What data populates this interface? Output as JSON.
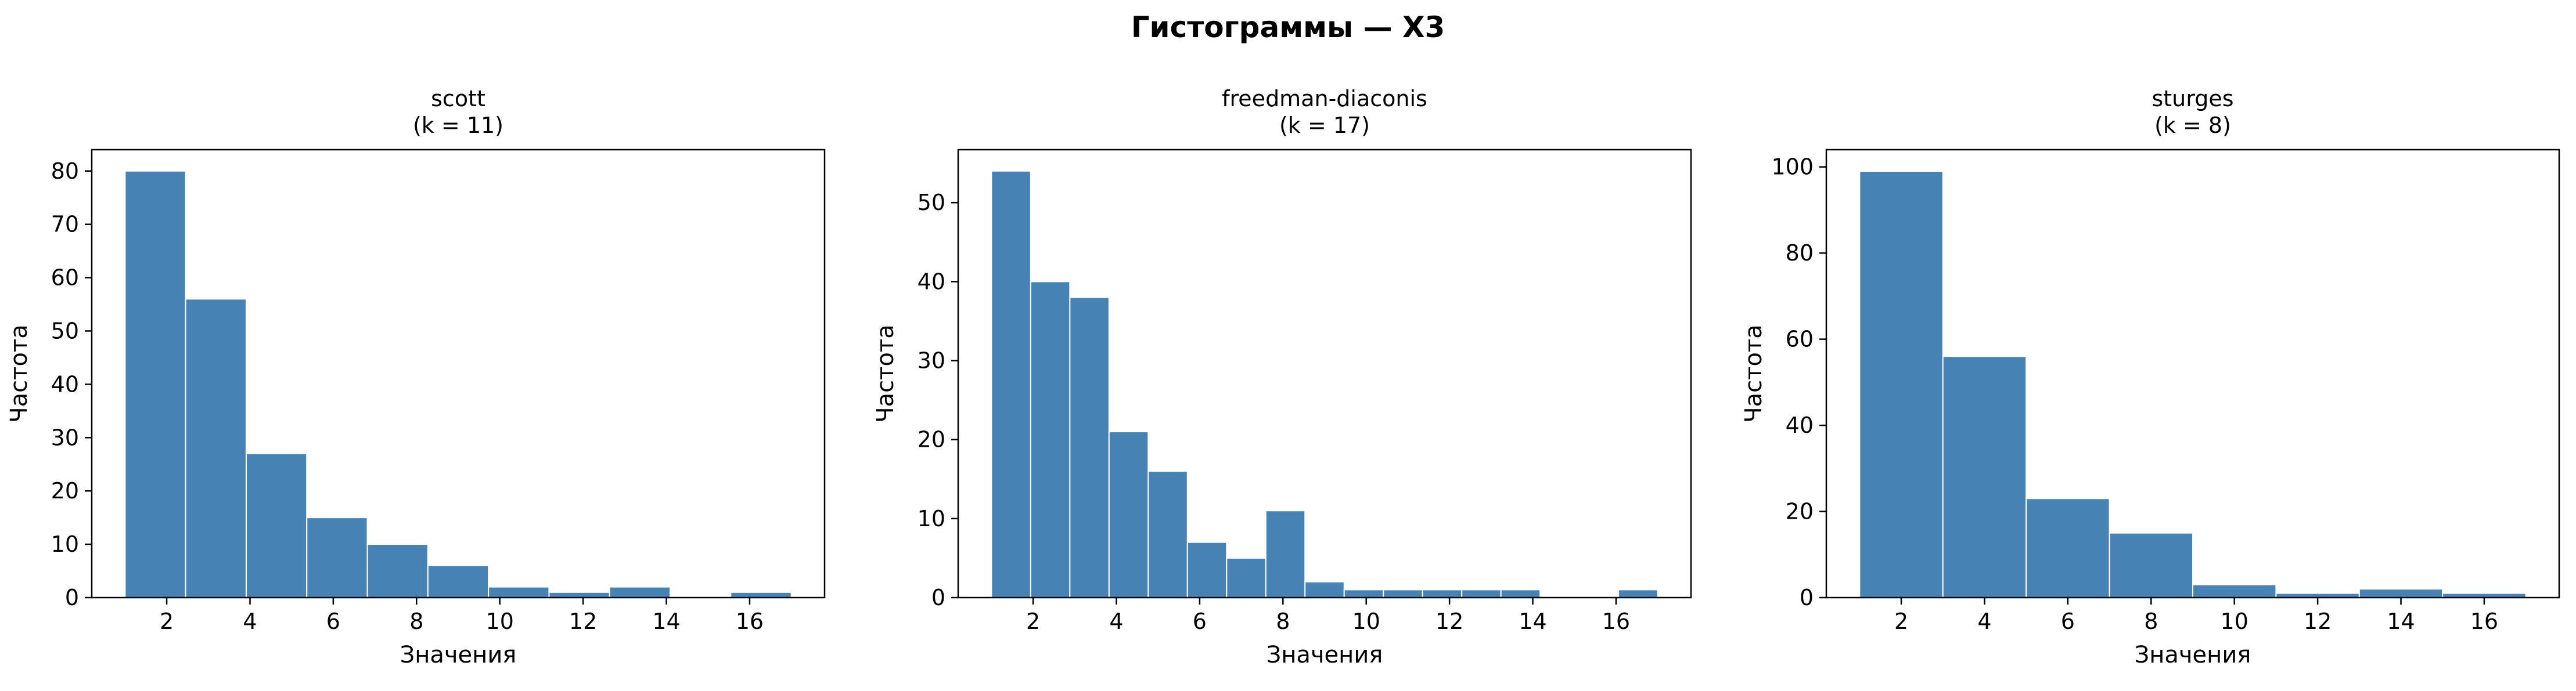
{
  "figure": {
    "title": "Гистограммы — X3"
  },
  "chart_data": [
    {
      "type": "bar",
      "title": "scott",
      "subtitle": "(k = 11)",
      "xlabel": "Значения",
      "ylabel": "Частота",
      "bin_edges": [
        1.0,
        2.4545,
        3.9091,
        5.3636,
        6.8182,
        8.2727,
        9.7273,
        11.1818,
        12.6364,
        14.0909,
        15.5455,
        17.0
      ],
      "values": [
        80,
        56,
        27,
        15,
        10,
        6,
        2,
        1,
        2,
        0,
        1
      ],
      "xlim": [
        0.2,
        17.8
      ],
      "ylim": [
        0,
        84
      ],
      "xticks": [
        2,
        4,
        6,
        8,
        10,
        12,
        14,
        16
      ],
      "yticks": [
        0,
        10,
        20,
        30,
        40,
        50,
        60,
        70,
        80
      ],
      "bar_color": "#4682b4",
      "edge_color": "#ffffff"
    },
    {
      "type": "bar",
      "title": "freedman-diaconis",
      "subtitle": "(k = 17)",
      "xlabel": "Значения",
      "ylabel": "Частота",
      "bin_edges": [
        1.0,
        1.9412,
        2.8824,
        3.8235,
        4.7647,
        5.7059,
        6.6471,
        7.5882,
        8.5294,
        9.4706,
        10.4118,
        11.3529,
        12.2941,
        13.2353,
        14.1765,
        15.1176,
        16.0588,
        17.0
      ],
      "values": [
        54,
        40,
        38,
        21,
        16,
        7,
        5,
        11,
        2,
        1,
        1,
        1,
        1,
        1,
        0,
        0,
        1
      ],
      "xlim": [
        0.2,
        17.8
      ],
      "ylim": [
        0,
        56.7
      ],
      "xticks": [
        2,
        4,
        6,
        8,
        10,
        12,
        14,
        16
      ],
      "yticks": [
        0,
        10,
        20,
        30,
        40,
        50
      ],
      "bar_color": "#4682b4",
      "edge_color": "#ffffff"
    },
    {
      "type": "bar",
      "title": "sturges",
      "subtitle": "(k = 8)",
      "xlabel": "Значения",
      "ylabel": "Частота",
      "bin_edges": [
        1.0,
        3.0,
        5.0,
        7.0,
        9.0,
        11.0,
        13.0,
        15.0,
        17.0
      ],
      "values": [
        99,
        56,
        23,
        15,
        3,
        1,
        2,
        1
      ],
      "xlim": [
        0.2,
        17.8
      ],
      "ylim": [
        0,
        104
      ],
      "xticks": [
        2,
        4,
        6,
        8,
        10,
        12,
        14,
        16
      ],
      "yticks": [
        0,
        20,
        40,
        60,
        80,
        100
      ],
      "bar_color": "#4682b4",
      "edge_color": "#ffffff"
    }
  ]
}
